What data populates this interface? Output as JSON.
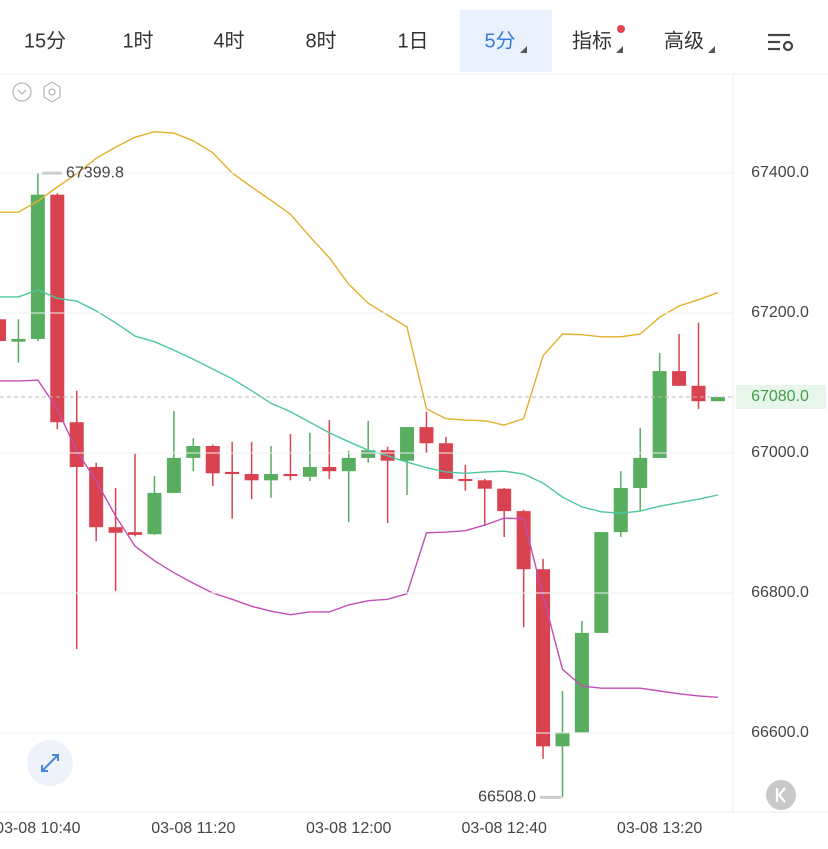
{
  "header": {
    "tabs": [
      "15分",
      "1时",
      "4时",
      "8时",
      "1日",
      "5分",
      "指标",
      "高级"
    ],
    "active": 5
  },
  "chart_data": {
    "type": "candlestick",
    "categories": [
      null,
      null,
      "03-08 10:40",
      null,
      null,
      null,
      null,
      null,
      null,
      null,
      "03-08 11:20",
      null,
      null,
      null,
      null,
      null,
      null,
      null,
      "03-08 12:00",
      null,
      null,
      null,
      null,
      null,
      null,
      null,
      "03-08 12:40",
      null,
      null,
      null,
      null,
      null,
      null,
      null,
      "03-08 13:20",
      null,
      null,
      null
    ],
    "open": [
      67191,
      67159,
      67163,
      67369,
      67044,
      66980,
      66894,
      66887,
      66884,
      66943,
      66993,
      67010,
      66973,
      66970,
      66961,
      66970,
      66966,
      66980,
      66974,
      66993,
      67004,
      66989,
      67037,
      67014,
      66963,
      66961,
      66949,
      66917,
      66834,
      66581,
      66601,
      66743,
      66887,
      66950,
      66993,
      67117,
      67096,
      67074
    ],
    "high": [
      67195,
      67191,
      67399.8,
      67371,
      67089,
      66986,
      66950,
      66999,
      66967,
      67060,
      67021,
      67012,
      67016,
      67016,
      67010,
      67027,
      67029,
      67047,
      67003,
      67046,
      67009,
      67037,
      67059,
      67023,
      66983,
      66963,
      66950,
      66919,
      66849,
      66660,
      66760,
      66887,
      66974,
      67036,
      67143,
      67170,
      67186,
      67080
    ],
    "low": [
      67158,
      67129,
      67160,
      67034,
      66720,
      66874,
      66803,
      66881,
      66883,
      66943,
      66974,
      66953,
      66906,
      66934,
      66936,
      66961,
      66960,
      66963,
      66901,
      66986,
      66900,
      66940,
      67000,
      66963,
      66946,
      66896,
      66880,
      66751,
      66563,
      66508,
      66601,
      66743,
      66880,
      66917,
      66993,
      67096,
      67063,
      67074
    ],
    "close": [
      67160,
      67163,
      67369,
      67044,
      66980,
      66894,
      66886,
      66883,
      66943,
      66993,
      67010,
      66971,
      66970,
      66961,
      66970,
      66967,
      66980,
      66974,
      66993,
      67004,
      66989,
      67037,
      67014,
      66963,
      66960,
      66949,
      66917,
      66834,
      66581,
      66601,
      66743,
      66887,
      66950,
      66993,
      67117,
      67096,
      67074,
      67080
    ],
    "up_color": "#58ad5f",
    "down_color": "#d8434f",
    "lines": [
      {
        "color": "#e2b12b",
        "values": [
          67344,
          67344,
          67360,
          67380,
          67399,
          67421,
          67437,
          67451,
          67459,
          67457,
          67446,
          67429,
          67400,
          67380,
          67361,
          67341,
          67309,
          67279,
          67241,
          67214,
          67197,
          67180,
          67063,
          67049,
          67047,
          67046,
          67040,
          67049,
          67139,
          67170,
          67169,
          67166,
          67166,
          67170,
          67194,
          67210,
          67219,
          67229
        ]
      },
      {
        "color": "#4cc7a4",
        "values": [
          67223,
          67223,
          67233,
          67221,
          67217,
          67203,
          67186,
          67167,
          67159,
          67147,
          67134,
          67120,
          67106,
          67089,
          67071,
          67059,
          67044,
          67029,
          67016,
          67004,
          66996,
          66987,
          66979,
          66973,
          66971,
          66973,
          66974,
          66970,
          66957,
          66937,
          66923,
          66916,
          66914,
          66917,
          66924,
          66929,
          66934,
          66940
        ]
      },
      {
        "color": "#c24eb4",
        "values": [
          67103,
          67103,
          67104,
          67063,
          67003,
          66960,
          66910,
          66867,
          66846,
          66829,
          66814,
          66800,
          66791,
          66781,
          66774,
          66769,
          66773,
          66773,
          66783,
          66789,
          66791,
          66799,
          66886,
          66887,
          66889,
          66897,
          66907,
          66906,
          66796,
          66691,
          66667,
          66664,
          66664,
          66664,
          66660,
          66656,
          66653,
          66651
        ]
      }
    ],
    "ylim": [
      66490,
      67540
    ],
    "yticks": [
      {
        "value": 66600,
        "label": "66600.0"
      },
      {
        "value": 66800,
        "label": "66800.0"
      },
      {
        "value": 67000,
        "label": "67000.0"
      },
      {
        "value": 67200,
        "label": "67200.0"
      },
      {
        "value": 67400,
        "label": "67400.0"
      }
    ],
    "grid": true,
    "last_price": {
      "value": 67080,
      "label": "67080.0"
    },
    "max_label": 67399.8,
    "min_label": {
      "value": 66508,
      "label": "66508.0"
    }
  }
}
